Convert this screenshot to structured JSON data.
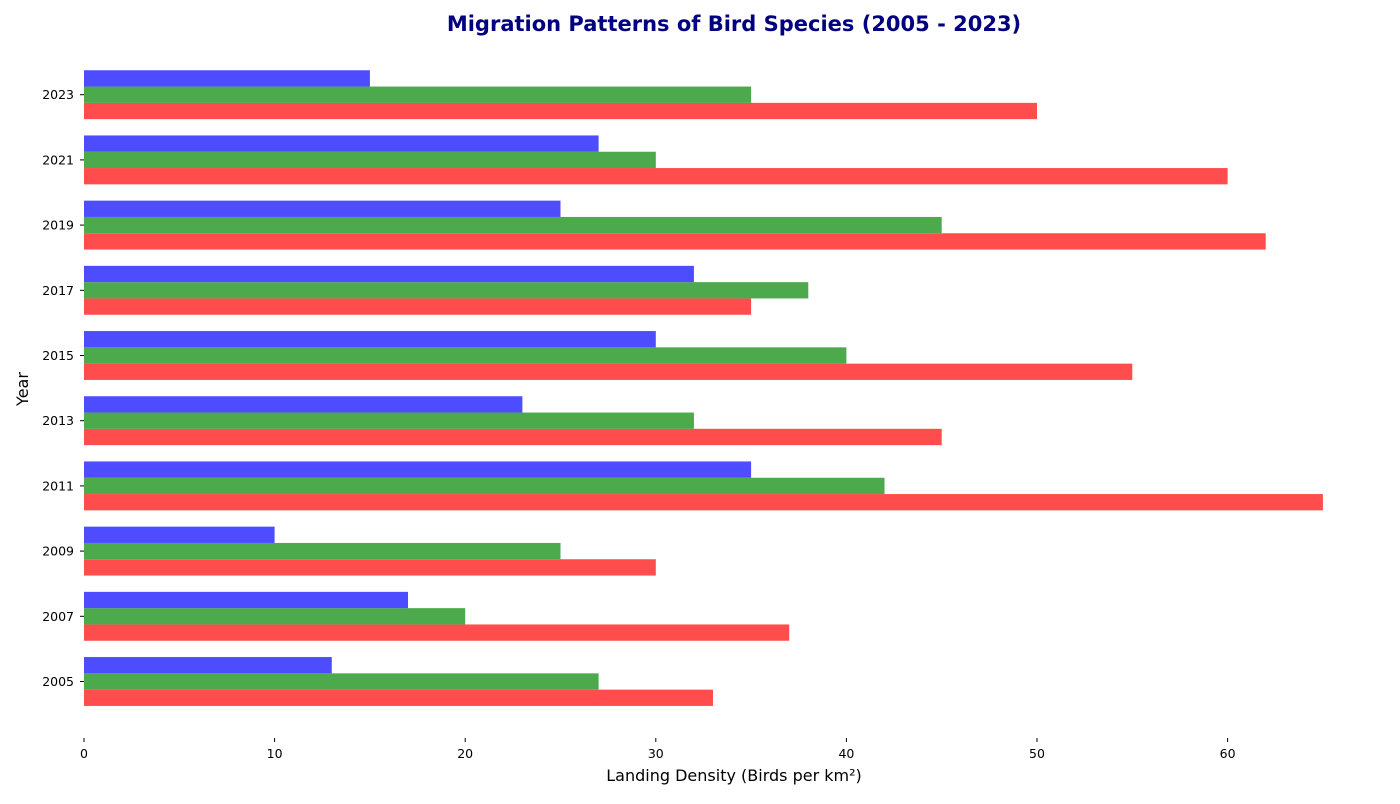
{
  "chart_data": {
    "type": "bar",
    "orientation": "horizontal",
    "title": "Migration Patterns of Bird Species (2005 - 2023)",
    "title_color": "#000080",
    "xlabel": "Landing Density (Birds per km²)",
    "ylabel": "Year",
    "xlim": [
      0,
      65
    ],
    "xticks": [
      "0",
      "10",
      "20",
      "30",
      "40",
      "50",
      "60"
    ],
    "grid": false,
    "legend": "none",
    "categories": [
      "2005",
      "2007",
      "2009",
      "2011",
      "2013",
      "2015",
      "2017",
      "2019",
      "2021",
      "2023"
    ],
    "series": [
      {
        "color": "#ff4d4d",
        "values": [
          33,
          37,
          30,
          65,
          45,
          55,
          35,
          62,
          60,
          50
        ]
      },
      {
        "color": "#4caa4c",
        "values": [
          27,
          20,
          25,
          42,
          32,
          40,
          38,
          45,
          30,
          35
        ]
      },
      {
        "color": "#4d4dff",
        "values": [
          13,
          17,
          10,
          35,
          23,
          30,
          32,
          25,
          27,
          15
        ]
      }
    ]
  }
}
